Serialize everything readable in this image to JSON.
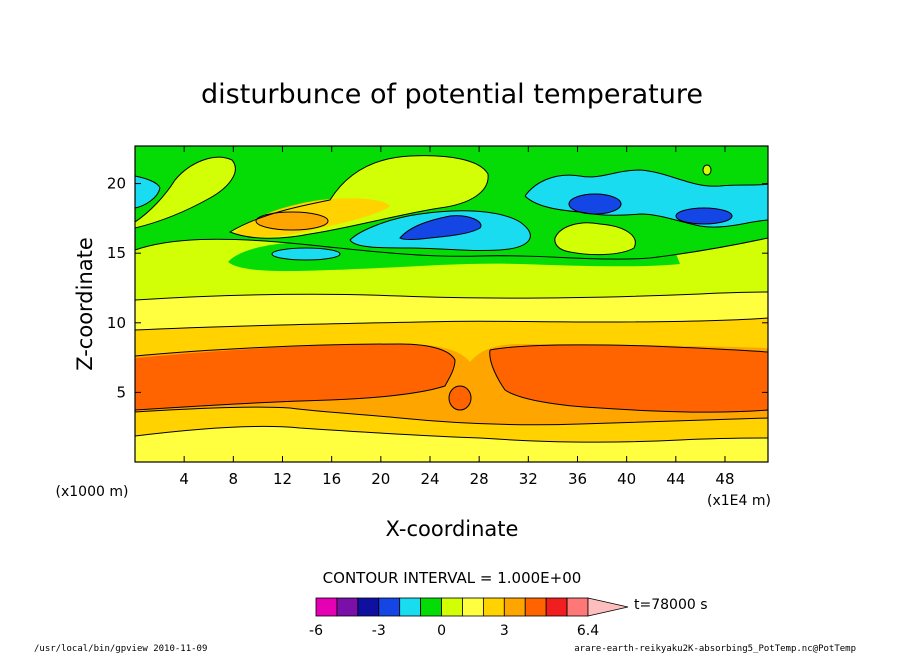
{
  "chart_data": {
    "type": "heatmap",
    "title": "disturbunce of potential temperature",
    "xlabel": "X-coordinate",
    "ylabel": "Z-coordinate",
    "x_unit_note": "(x1E4 m)",
    "z_unit_note": "(x1000 m)",
    "xlim": [
      0,
      51.5
    ],
    "ylim": [
      0,
      22.7
    ],
    "x_ticks": [
      4,
      8,
      12,
      16,
      20,
      24,
      28,
      32,
      36,
      40,
      44,
      48
    ],
    "x_tick_labels": [
      "4",
      "8",
      "12",
      "16",
      "20",
      "24",
      "28",
      "32",
      "36",
      "40",
      "44",
      "48"
    ],
    "y_ticks": [
      5,
      10,
      15,
      20
    ],
    "y_tick_labels": [
      "5",
      "10",
      "15",
      "20"
    ],
    "contour_interval_text": "CONTOUR INTERVAL = 1.000E+00",
    "time_label": "t=78000 s",
    "colorbar": {
      "levels": [
        -6,
        -5,
        -4,
        -3,
        -2,
        -1,
        0,
        1,
        2,
        3,
        4,
        5,
        6,
        6.4
      ],
      "colors": [
        "#e600b4",
        "#7a10a8",
        "#1010a0",
        "#1446e6",
        "#19dcf0",
        "#05dc05",
        "#d2ff05",
        "#ffff40",
        "#ffd200",
        "#ffa500",
        "#ff6400",
        "#f01e1e",
        "#ff7878",
        "#ffbebe"
      ],
      "tick_labels": [
        "-6",
        "-3",
        "0",
        "3",
        "6.4"
      ]
    },
    "layers_note": "qualitative band structure of the contour field, values in data units",
    "bands": [
      {
        "level": 1,
        "z_bottom": 0,
        "z_top": 2
      },
      {
        "level": 2,
        "z_bottom": 2,
        "z_top": 3.7
      },
      {
        "level": 3,
        "z_bottom": 3.7,
        "z_top": 7.8
      },
      {
        "level": 2,
        "z_bottom": 7.8,
        "z_top": 10.2
      },
      {
        "level": 1,
        "z_bottom": 10.2,
        "z_top": 12
      },
      {
        "level": 0,
        "z_bottom": 12,
        "z_top": 15.5
      },
      {
        "level": -1,
        "z_bottom": 15.5,
        "z_top": 22.7
      }
    ]
  },
  "footer": {
    "left": "/usr/local/bin/gpview  2010-11-09",
    "right": "arare-earth-reikyaku2K-absorbing5_PotTemp.nc@PotTemp"
  }
}
